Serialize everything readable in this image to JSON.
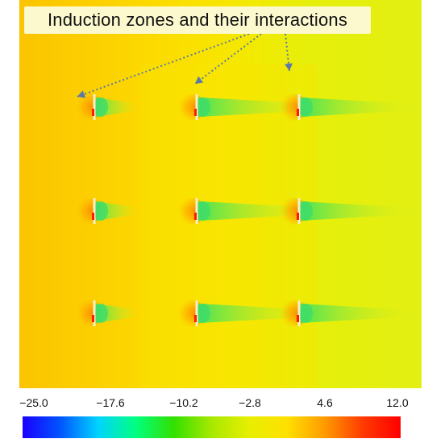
{
  "annotation": {
    "text": "Induction zones and their interactions"
  },
  "colorbar": {
    "ticks": [
      "−25.0",
      "−17.6",
      "−10.2",
      "−2.8",
      "4.6",
      "12.0"
    ],
    "min": -25.0,
    "max": 12.0,
    "colors": [
      "#1a00ff",
      "#0055ff",
      "#00d4ff",
      "#00ff80",
      "#33e000",
      "#a8e800",
      "#e8ef00",
      "#ffe000",
      "#ff9a00",
      "#ff3a00",
      "#ff0000"
    ]
  },
  "field": {
    "background_colors": {
      "upstream": "#fcd500",
      "middle": "#f8e700",
      "downstream": "#e4ef0d"
    },
    "turbine_rows": 3,
    "turbine_columns": 3
  }
}
